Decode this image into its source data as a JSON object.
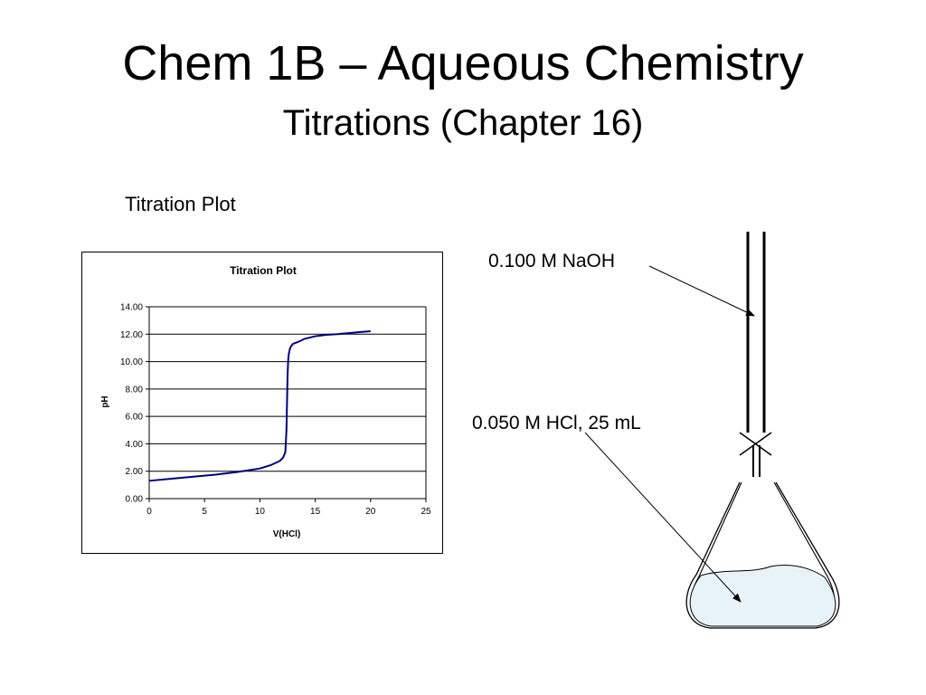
{
  "slide": {
    "title": "Chem 1B – Aqueous Chemistry",
    "subtitle": "Titrations (Chapter 16)",
    "section_label": "Titration Plot"
  },
  "diagram": {
    "titrant_label": "0.100 M NaOH",
    "analyte_label": "0.050 M HCl, 25 mL",
    "liquid_color": "#e8f3f8"
  },
  "chart_data": {
    "type": "line",
    "title": "Titration Plot",
    "xlabel": "V(HCl)",
    "ylabel": "pH",
    "xlim": [
      0,
      25
    ],
    "ylim": [
      0,
      14
    ],
    "x_ticks": [
      "0",
      "5",
      "10",
      "15",
      "20",
      "25"
    ],
    "y_ticks": [
      "0.00",
      "2.00",
      "4.00",
      "6.00",
      "8.00",
      "10.00",
      "12.00",
      "14.00"
    ],
    "grid": "horizontal",
    "line_color": "#000080",
    "series": [
      {
        "x": [
          0,
          2,
          4,
          6,
          8,
          10,
          11,
          11.8,
          12.1,
          12.3,
          12.4,
          12.45,
          12.5,
          12.55,
          12.6,
          12.7,
          12.8,
          13.0,
          13.5,
          14,
          15,
          16,
          17,
          18,
          19,
          20
        ],
        "y": [
          1.3,
          1.45,
          1.6,
          1.75,
          1.95,
          2.2,
          2.45,
          2.75,
          3.0,
          3.4,
          5.0,
          7.0,
          9.0,
          10.0,
          10.5,
          10.9,
          11.1,
          11.3,
          11.45,
          11.65,
          11.85,
          11.95,
          12.0,
          12.08,
          12.15,
          12.22
        ]
      }
    ]
  }
}
